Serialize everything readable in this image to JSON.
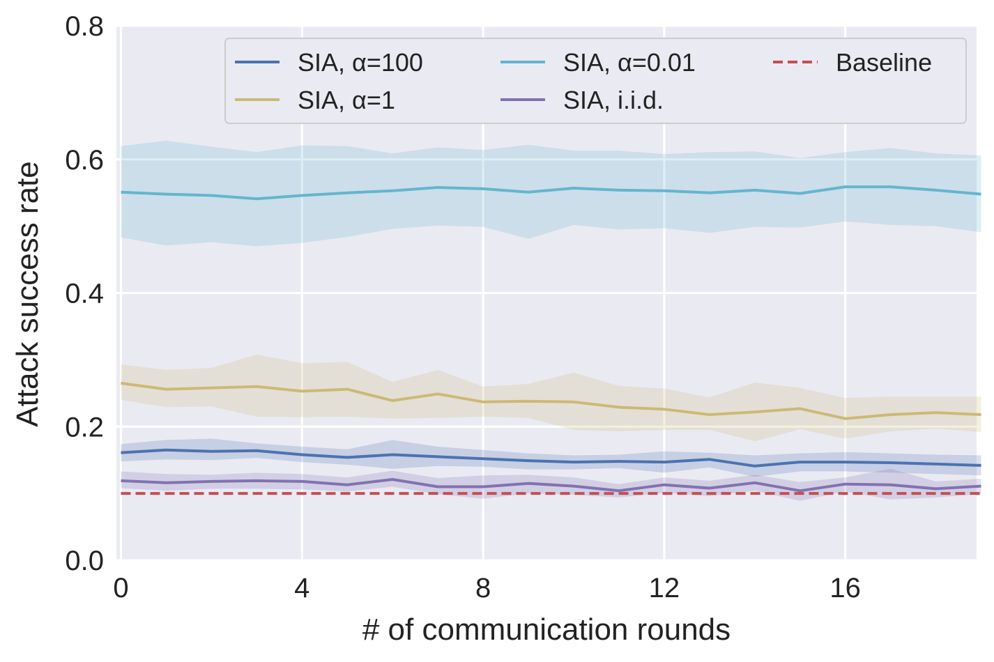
{
  "chart_data": {
    "type": "line",
    "title": "",
    "xlabel": "# of communication rounds",
    "ylabel": "Attack success rate",
    "xlim": [
      -0.1,
      18.9
    ],
    "ylim": [
      0.0,
      0.8
    ],
    "x_ticks": [
      0,
      4,
      8,
      12,
      16
    ],
    "x_tick_labels": [
      "0",
      "4",
      "8",
      "12",
      "16"
    ],
    "y_ticks": [
      0.0,
      0.2,
      0.4,
      0.6,
      0.8
    ],
    "y_tick_labels": [
      "0.0",
      "0.2",
      "0.4",
      "0.6",
      "0.8"
    ],
    "grid": true,
    "legend_position": "top-right",
    "legend_columns": 3,
    "x": [
      0,
      1,
      2,
      3,
      4,
      5,
      6,
      7,
      8,
      9,
      10,
      11,
      12,
      13,
      14,
      15,
      16,
      17,
      18,
      19
    ],
    "series": [
      {
        "name": "SIA, α=100",
        "color": "#4c72b0",
        "style": "solid",
        "values": [
          0.161,
          0.165,
          0.163,
          0.164,
          0.158,
          0.154,
          0.158,
          0.155,
          0.152,
          0.149,
          0.147,
          0.148,
          0.147,
          0.151,
          0.141,
          0.147,
          0.147,
          0.146,
          0.144,
          0.142
        ],
        "lower": [
          0.148,
          0.151,
          0.15,
          0.153,
          0.147,
          0.143,
          0.137,
          0.141,
          0.14,
          0.136,
          0.136,
          0.138,
          0.131,
          0.139,
          0.125,
          0.133,
          0.133,
          0.131,
          0.129,
          0.127
        ],
        "upper": [
          0.174,
          0.18,
          0.182,
          0.175,
          0.17,
          0.166,
          0.18,
          0.17,
          0.165,
          0.16,
          0.157,
          0.158,
          0.163,
          0.161,
          0.157,
          0.16,
          0.162,
          0.16,
          0.158,
          0.157
        ]
      },
      {
        "name": "SIA, α=1",
        "color": "#ccb974",
        "style": "solid",
        "values": [
          0.265,
          0.256,
          0.258,
          0.26,
          0.253,
          0.256,
          0.239,
          0.249,
          0.237,
          0.238,
          0.237,
          0.229,
          0.226,
          0.218,
          0.222,
          0.227,
          0.212,
          0.218,
          0.221,
          0.218
        ],
        "lower": [
          0.24,
          0.229,
          0.23,
          0.215,
          0.214,
          0.215,
          0.212,
          0.213,
          0.215,
          0.213,
          0.195,
          0.193,
          0.195,
          0.195,
          0.178,
          0.196,
          0.182,
          0.193,
          0.197,
          0.192
        ],
        "upper": [
          0.293,
          0.285,
          0.288,
          0.308,
          0.295,
          0.297,
          0.267,
          0.285,
          0.26,
          0.264,
          0.281,
          0.261,
          0.257,
          0.244,
          0.266,
          0.258,
          0.243,
          0.245,
          0.245,
          0.245
        ]
      },
      {
        "name": "SIA, α=0.01",
        "color": "#64b5cd",
        "style": "solid",
        "values": [
          0.551,
          0.548,
          0.546,
          0.541,
          0.546,
          0.55,
          0.553,
          0.558,
          0.556,
          0.551,
          0.557,
          0.554,
          0.553,
          0.55,
          0.554,
          0.549,
          0.559,
          0.559,
          0.554,
          0.548
        ],
        "lower": [
          0.483,
          0.471,
          0.476,
          0.47,
          0.475,
          0.484,
          0.496,
          0.501,
          0.499,
          0.481,
          0.502,
          0.495,
          0.497,
          0.49,
          0.499,
          0.498,
          0.507,
          0.502,
          0.5,
          0.491
        ],
        "upper": [
          0.62,
          0.628,
          0.619,
          0.611,
          0.621,
          0.62,
          0.609,
          0.618,
          0.614,
          0.622,
          0.613,
          0.613,
          0.608,
          0.611,
          0.612,
          0.602,
          0.611,
          0.617,
          0.609,
          0.606
        ]
      },
      {
        "name": "SIA, i.i.d.",
        "color": "#8172b2",
        "style": "solid",
        "values": [
          0.119,
          0.116,
          0.118,
          0.119,
          0.118,
          0.113,
          0.121,
          0.11,
          0.11,
          0.115,
          0.111,
          0.104,
          0.113,
          0.108,
          0.116,
          0.104,
          0.114,
          0.113,
          0.107,
          0.111
        ],
        "lower": [
          0.108,
          0.104,
          0.107,
          0.107,
          0.106,
          0.103,
          0.11,
          0.099,
          0.092,
          0.1,
          0.098,
          0.094,
          0.101,
          0.096,
          0.104,
          0.089,
          0.103,
          0.091,
          0.094,
          0.099
        ],
        "upper": [
          0.133,
          0.129,
          0.128,
          0.131,
          0.129,
          0.124,
          0.134,
          0.123,
          0.127,
          0.128,
          0.124,
          0.114,
          0.124,
          0.119,
          0.128,
          0.117,
          0.124,
          0.137,
          0.118,
          0.122
        ]
      },
      {
        "name": "Baseline",
        "color": "#c44e52",
        "style": "dashed",
        "values": [
          0.1,
          0.1,
          0.1,
          0.1,
          0.1,
          0.1,
          0.1,
          0.1,
          0.1,
          0.1,
          0.1,
          0.1,
          0.1,
          0.1,
          0.1,
          0.1,
          0.1,
          0.1,
          0.1,
          0.1
        ]
      }
    ],
    "legend_order": [
      "SIA, α=100",
      "SIA, α=0.01",
      "Baseline",
      "SIA, α=1",
      "SIA, i.i.d."
    ]
  }
}
